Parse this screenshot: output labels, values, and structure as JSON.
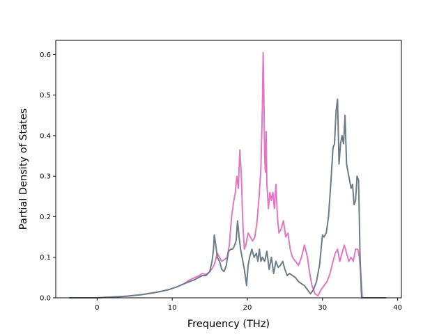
{
  "chart_data": {
    "type": "line",
    "title": "",
    "xlabel": "Frequency (THz)",
    "ylabel": "Partial Density of States",
    "xlim": [
      -5.5,
      40.5
    ],
    "ylim": [
      0.0,
      0.635
    ],
    "x_ticks": [
      0,
      10,
      20,
      30,
      40
    ],
    "y_ticks": [
      0.0,
      0.1,
      0.2,
      0.3,
      0.4,
      0.5,
      0.6
    ],
    "x_tick_labels": [
      "0",
      "10",
      "20",
      "30",
      "40"
    ],
    "y_tick_labels": [
      "0.0",
      "0.1",
      "0.2",
      "0.3",
      "0.4",
      "0.5",
      "0.6"
    ],
    "grid": false,
    "legend": "none",
    "series": [
      {
        "color": "#e377c2",
        "x": [
          -3.7,
          0.0,
          2.0,
          4.0,
          6.0,
          8.0,
          9.5,
          10.5,
          11.5,
          12.3,
          13.0,
          13.5,
          14.0,
          14.5,
          15.0,
          15.3,
          15.6,
          15.8,
          16.0,
          16.3,
          16.6,
          17.0,
          17.3,
          17.6,
          17.9,
          18.2,
          18.4,
          18.6,
          18.8,
          19.0,
          19.2,
          19.4,
          19.6,
          19.8,
          20.1,
          20.4,
          20.7,
          21.0,
          21.3,
          21.6,
          21.8,
          22.0,
          22.1,
          22.2,
          22.3,
          22.4,
          22.5,
          22.6,
          22.8,
          23.0,
          23.2,
          23.4,
          23.6,
          23.8,
          24.0,
          24.2,
          24.5,
          24.8,
          25.1,
          25.4,
          25.7,
          26.0,
          26.4,
          26.8,
          27.2,
          27.6,
          28.0,
          28.3,
          28.6,
          29.0,
          29.4,
          29.8,
          30.2,
          30.6,
          31.0,
          31.4,
          31.7,
          32.0,
          32.3,
          32.6,
          32.9,
          33.2,
          33.5,
          33.8,
          34.1,
          34.4,
          34.7,
          34.9,
          35.1,
          35.3,
          36.0,
          38.5
        ],
        "y": [
          0.0,
          0.0,
          0.002,
          0.004,
          0.008,
          0.014,
          0.02,
          0.026,
          0.034,
          0.044,
          0.05,
          0.054,
          0.06,
          0.058,
          0.064,
          0.072,
          0.082,
          0.095,
          0.11,
          0.1,
          0.09,
          0.095,
          0.1,
          0.13,
          0.2,
          0.24,
          0.26,
          0.3,
          0.27,
          0.365,
          0.3,
          0.18,
          0.12,
          0.13,
          0.16,
          0.15,
          0.14,
          0.15,
          0.19,
          0.26,
          0.32,
          0.47,
          0.605,
          0.5,
          0.35,
          0.31,
          0.41,
          0.28,
          0.22,
          0.26,
          0.24,
          0.26,
          0.22,
          0.28,
          0.2,
          0.16,
          0.17,
          0.19,
          0.15,
          0.16,
          0.12,
          0.1,
          0.09,
          0.08,
          0.1,
          0.13,
          0.1,
          0.06,
          0.03,
          0.01,
          0.005,
          0.02,
          0.03,
          0.04,
          0.06,
          0.09,
          0.11,
          0.12,
          0.09,
          0.11,
          0.13,
          0.11,
          0.09,
          0.1,
          0.09,
          0.12,
          0.12,
          0.1,
          0.06,
          0.0,
          0.0,
          0.0
        ]
      },
      {
        "color": "#6b7b87",
        "x": [
          -3.7,
          0.0,
          2.0,
          4.0,
          6.0,
          8.0,
          9.5,
          10.5,
          11.5,
          12.3,
          13.0,
          13.5,
          14.0,
          14.5,
          15.0,
          15.3,
          15.5,
          15.6,
          15.8,
          16.0,
          16.3,
          16.6,
          16.9,
          17.2,
          17.5,
          17.8,
          18.0,
          18.2,
          18.5,
          18.7,
          18.9,
          19.1,
          19.3,
          19.6,
          19.9,
          20.1,
          20.3,
          20.6,
          20.9,
          21.2,
          21.4,
          21.6,
          21.8,
          22.0,
          22.3,
          22.6,
          22.9,
          23.2,
          23.5,
          23.8,
          24.1,
          24.4,
          24.7,
          25.0,
          25.3,
          25.6,
          26.0,
          26.4,
          26.8,
          27.2,
          27.6,
          28.0,
          28.4,
          28.8,
          29.2,
          29.6,
          30.0,
          30.2,
          30.5,
          30.8,
          31.1,
          31.4,
          31.6,
          31.8,
          32.0,
          32.2,
          32.4,
          32.6,
          32.8,
          33.0,
          33.2,
          33.5,
          33.8,
          34.0,
          34.2,
          34.4,
          34.6,
          34.8,
          35.0,
          35.2,
          35.4,
          36.0,
          38.5
        ],
        "y": [
          0.0,
          0.0,
          0.002,
          0.004,
          0.008,
          0.014,
          0.02,
          0.026,
          0.034,
          0.04,
          0.045,
          0.05,
          0.055,
          0.055,
          0.065,
          0.09,
          0.12,
          0.155,
          0.13,
          0.1,
          0.09,
          0.07,
          0.065,
          0.08,
          0.115,
          0.12,
          0.12,
          0.125,
          0.14,
          0.19,
          0.15,
          0.12,
          0.1,
          0.07,
          0.03,
          0.08,
          0.1,
          0.12,
          0.1,
          0.11,
          0.09,
          0.12,
          0.09,
          0.1,
          0.09,
          0.115,
          0.07,
          0.1,
          0.06,
          0.09,
          0.075,
          0.08,
          0.09,
          0.07,
          0.055,
          0.06,
          0.055,
          0.05,
          0.04,
          0.035,
          0.03,
          0.02,
          0.01,
          0.02,
          0.04,
          0.08,
          0.155,
          0.15,
          0.16,
          0.2,
          0.28,
          0.37,
          0.38,
          0.46,
          0.49,
          0.33,
          0.38,
          0.4,
          0.38,
          0.45,
          0.33,
          0.3,
          0.27,
          0.28,
          0.23,
          0.24,
          0.3,
          0.29,
          0.1,
          0.0,
          0.0,
          0.0,
          0.0
        ]
      }
    ]
  }
}
